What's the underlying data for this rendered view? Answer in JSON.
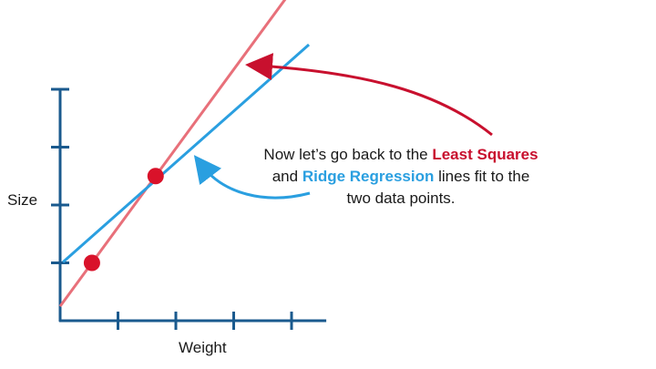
{
  "chart_data": {
    "type": "scatter",
    "xlabel": "Weight",
    "ylabel": "Size",
    "x_ticks": 4,
    "y_ticks": 4,
    "points": [
      {
        "x": 0.55,
        "y": 1.0
      },
      {
        "x": 1.65,
        "y": 2.5
      }
    ],
    "lines": [
      {
        "name": "Least Squares",
        "slope": 1.364,
        "intercept": 0.25,
        "color": "#e8707a"
      },
      {
        "name": "Ridge Regression",
        "slope": 0.884,
        "intercept": 0.97,
        "color": "#2a9fe0"
      }
    ],
    "colors": {
      "axis": "#1a5a8e",
      "point": "#d9122a"
    }
  },
  "annotation": {
    "part1": "Now let’s go back to the",
    "least_squares": "Least Squares",
    "and": "and",
    "ridge": "Ridge Regression",
    "part2": "lines fit to the",
    "part3": "two data points."
  }
}
